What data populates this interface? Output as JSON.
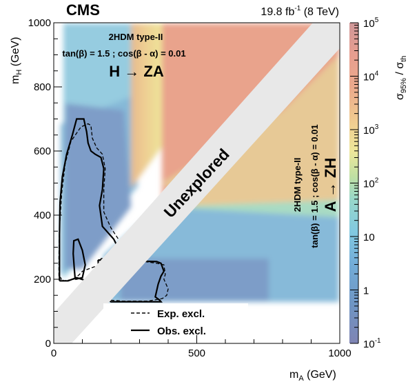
{
  "chart_data": {
    "type": "heatmap",
    "header": {
      "experiment": "CMS",
      "lumi_prefix": "19.8 fb",
      "lumi_exp": "-1",
      "lumi_suffix": " (8 TeV)"
    },
    "x_axis": {
      "label_main": "m",
      "label_sub": "A",
      "label_unit": " (GeV)",
      "range": [
        0,
        1000
      ],
      "ticks": [
        {
          "v": 0,
          "t": "0"
        },
        {
          "v": 500,
          "t": "500"
        },
        {
          "v": 1000,
          "t": "1000"
        }
      ]
    },
    "y_axis": {
      "label_main": "m",
      "label_sub": "H",
      "label_unit": " (GeV)",
      "range": [
        0,
        1000
      ],
      "ticks": [
        {
          "v": 0,
          "t": "0"
        },
        {
          "v": 200,
          "t": "200"
        },
        {
          "v": 400,
          "t": "400"
        },
        {
          "v": 600,
          "t": "600"
        },
        {
          "v": 800,
          "t": "800"
        },
        {
          "v": 1000,
          "t": "1000"
        }
      ]
    },
    "z_axis": {
      "label_main": "σ",
      "label_sub1": "95%",
      "label_mid": " / σ",
      "label_sub2": "th",
      "scale": "log",
      "range": [
        0.1,
        100000
      ],
      "ticks": [
        {
          "v": 0.1,
          "base": "10",
          "exp": "-1"
        },
        {
          "v": 1,
          "base": "1",
          "exp": ""
        },
        {
          "v": 10,
          "base": "10",
          "exp": ""
        },
        {
          "v": 100,
          "base": "10",
          "exp": "2"
        },
        {
          "v": 1000,
          "base": "10",
          "exp": "3"
        },
        {
          "v": 10000,
          "base": "10",
          "exp": "4"
        },
        {
          "v": 100000,
          "base": "10",
          "exp": "5"
        }
      ]
    },
    "annotations": {
      "top_left": {
        "model": "2HDM type-II",
        "params": "tan(β) = 1.5 ; cos(β - α) = 0.01",
        "process": "H → ZA"
      },
      "right": {
        "model": "2HDM type-II",
        "params": "tan(β) = 1.5 ; cos(β - α) = 0.01",
        "process": "A → ZH"
      },
      "diagonal": "Unexplored"
    },
    "legend": {
      "placement": "bottom-center",
      "entries": [
        {
          "label": "Exp. excl.",
          "style": "dashed"
        },
        {
          "label": "Obs. excl.",
          "style": "solid"
        }
      ]
    },
    "heatmap_regions": [
      {
        "region": "H→ZA, low m_A (< 380 GeV)",
        "approx_value": 10
      },
      {
        "region": "H→ZA, m_A 270–380 GeV",
        "approx_value": 1000
      },
      {
        "region": "H→ZA, m_A > 380 GeV",
        "approx_value": 20000
      },
      {
        "region": "A→ZH, m_H > 480 GeV, far from diagonal",
        "approx_value": 100
      },
      {
        "region": "A→ZH, m_H 130–480 GeV",
        "approx_value": 3
      }
    ],
    "contours": {
      "obs_HZA_outer": [
        [
          20,
          195
        ],
        [
          50,
          195
        ],
        [
          80,
          205
        ],
        [
          115,
          195
        ],
        [
          160,
          195
        ],
        [
          230,
          215
        ],
        [
          235,
          280
        ],
        [
          210,
          325
        ],
        [
          170,
          365
        ],
        [
          160,
          430
        ],
        [
          170,
          480
        ],
        [
          175,
          545
        ],
        [
          165,
          580
        ],
        [
          145,
          590
        ],
        [
          130,
          600
        ],
        [
          120,
          625
        ],
        [
          115,
          660
        ],
        [
          105,
          700
        ],
        [
          80,
          700
        ],
        [
          65,
          650
        ],
        [
          45,
          590
        ],
        [
          30,
          520
        ],
        [
          22,
          440
        ],
        [
          20,
          340
        ],
        [
          20,
          195
        ]
      ],
      "obs_HZA_inner": [
        [
          75,
          200
        ],
        [
          100,
          205
        ],
        [
          110,
          245
        ],
        [
          100,
          290
        ],
        [
          85,
          325
        ],
        [
          70,
          320
        ],
        [
          68,
          280
        ],
        [
          72,
          230
        ],
        [
          75,
          200
        ]
      ],
      "exp_HZA": [
        [
          18,
          210
        ],
        [
          35,
          195
        ],
        [
          70,
          200
        ],
        [
          90,
          215
        ],
        [
          100,
          225
        ],
        [
          160,
          245
        ],
        [
          230,
          265
        ],
        [
          230,
          320
        ],
        [
          200,
          360
        ],
        [
          175,
          410
        ],
        [
          175,
          480
        ],
        [
          180,
          545
        ],
        [
          170,
          590
        ],
        [
          150,
          610
        ],
        [
          135,
          640
        ],
        [
          130,
          680
        ],
        [
          120,
          685
        ],
        [
          95,
          675
        ],
        [
          60,
          630
        ],
        [
          40,
          560
        ],
        [
          28,
          470
        ],
        [
          20,
          360
        ],
        [
          18,
          270
        ],
        [
          18,
          210
        ]
      ],
      "obs_AZH": [
        [
          155,
          260
        ],
        [
          360,
          255
        ],
        [
          375,
          250
        ],
        [
          385,
          225
        ],
        [
          375,
          210
        ],
        [
          365,
          185
        ],
        [
          355,
          145
        ],
        [
          370,
          135
        ],
        [
          375,
          130
        ],
        [
          320,
          130
        ],
        [
          240,
          130
        ],
        [
          200,
          130
        ],
        [
          180,
          140
        ],
        [
          165,
          155
        ],
        [
          160,
          200
        ],
        [
          155,
          260
        ]
      ],
      "exp_AZH": [
        [
          165,
          265
        ],
        [
          280,
          260
        ],
        [
          360,
          250
        ],
        [
          385,
          245
        ],
        [
          390,
          215
        ],
        [
          385,
          200
        ],
        [
          400,
          170
        ],
        [
          395,
          150
        ],
        [
          380,
          140
        ],
        [
          330,
          132
        ],
        [
          240,
          132
        ],
        [
          195,
          135
        ],
        [
          170,
          145
        ],
        [
          162,
          180
        ],
        [
          160,
          230
        ],
        [
          165,
          265
        ]
      ]
    }
  }
}
